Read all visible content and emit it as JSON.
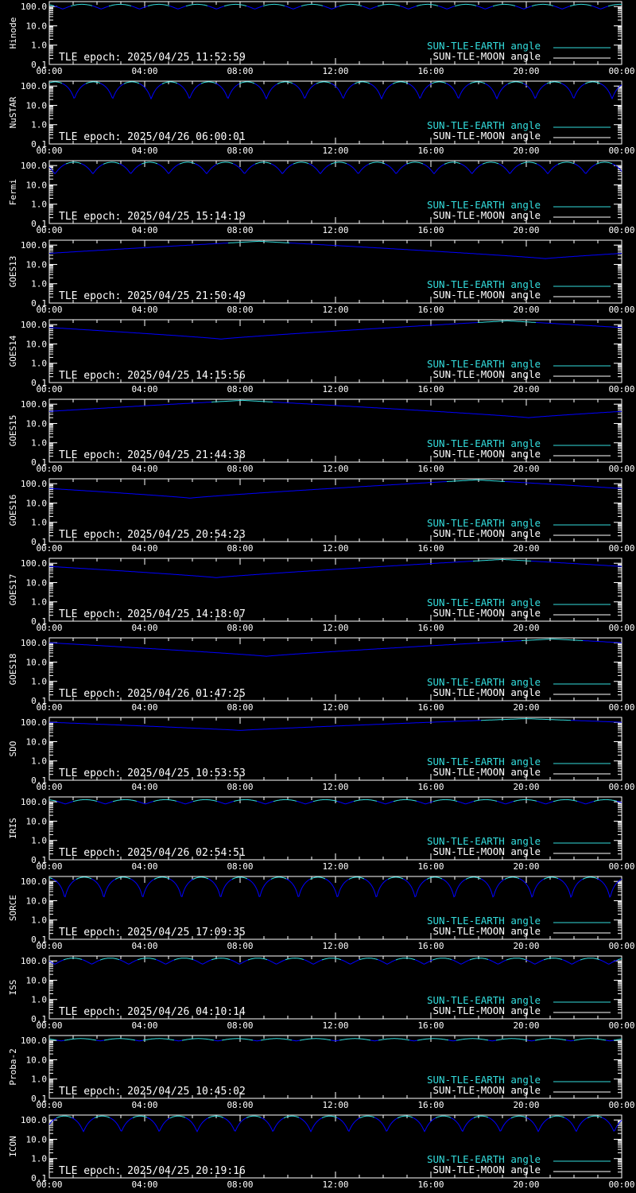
{
  "colors": {
    "background": "#000000",
    "axis": "#ffffff",
    "sun_tle_earth": "#33dddd",
    "sun_tle_moon": "#ffffff",
    "eclipse_curve": "#0000ff"
  },
  "legend": {
    "earth_label": "SUN-TLE-EARTH angle",
    "moon_label": "SUN-TLE-MOON angle"
  },
  "chart_data": [
    {
      "type": "line",
      "ylabel": "Hinode",
      "epoch_text": "TLE epoch: 2025/04/25 11:52:59",
      "yscale": "log",
      "ylim": [
        0.1,
        180
      ],
      "ytick_labels": [
        "0.1",
        "1.0",
        "10.0",
        "100.0"
      ],
      "xlim": [
        0,
        24
      ],
      "xtick_labels": [
        "00:00",
        "04:00",
        "08:00",
        "12:00",
        "16:00",
        "20:00",
        "00:00"
      ],
      "pattern": {
        "kind": "periodic",
        "periods_per_day": 14.9,
        "phase": 0.15,
        "max": 130,
        "min": 75
      },
      "grid": false,
      "legend_position": "bottom-right"
    },
    {
      "type": "line",
      "ylabel": "NuSTAR",
      "epoch_text": "TLE epoch: 2025/04/26 06:00:01",
      "yscale": "log",
      "ylim": [
        0.1,
        180
      ],
      "ytick_labels": [
        "0.1",
        "1.0",
        "10.0",
        "100.0"
      ],
      "xlim": [
        0,
        24
      ],
      "xtick_labels": [
        "00:00",
        "04:00",
        "08:00",
        "12:00",
        "16:00",
        "20:00",
        "00:00"
      ],
      "pattern": {
        "kind": "periodic",
        "periods_per_day": 14.9,
        "phase": 0.85,
        "max": 165,
        "min": 22
      },
      "grid": false,
      "legend_position": "bottom-right"
    },
    {
      "type": "line",
      "ylabel": "Fermi",
      "epoch_text": "TLE epoch: 2025/04/25 15:14:19",
      "yscale": "log",
      "ylim": [
        0.1,
        180
      ],
      "ytick_labels": [
        "0.1",
        "1.0",
        "10.0",
        "100.0"
      ],
      "xlim": [
        0,
        24
      ],
      "xtick_labels": [
        "00:00",
        "04:00",
        "08:00",
        "12:00",
        "16:00",
        "20:00",
        "00:00"
      ],
      "pattern": {
        "kind": "periodic",
        "periods_per_day": 15.1,
        "phase": 0.35,
        "max": 150,
        "min": 38
      },
      "grid": false,
      "legend_position": "bottom-right"
    },
    {
      "type": "line",
      "ylabel": "GOES13",
      "epoch_text": "TLE epoch: 2025/04/25 21:50:49",
      "yscale": "log",
      "ylim": [
        0.1,
        180
      ],
      "ytick_labels": [
        "0.1",
        "1.0",
        "10.0",
        "100.0"
      ],
      "xlim": [
        0,
        24
      ],
      "xtick_labels": [
        "00:00",
        "04:00",
        "08:00",
        "12:00",
        "16:00",
        "20:00",
        "00:00"
      ],
      "pattern": {
        "kind": "daily",
        "min_hour": 20.8,
        "max": 158,
        "min": 20
      },
      "grid": false,
      "legend_position": "bottom-right"
    },
    {
      "type": "line",
      "ylabel": "GOES14",
      "epoch_text": "TLE epoch: 2025/04/25 14:15:56",
      "yscale": "log",
      "ylim": [
        0.1,
        180
      ],
      "ytick_labels": [
        "0.1",
        "1.0",
        "10.0",
        "100.0"
      ],
      "xlim": [
        0,
        24
      ],
      "xtick_labels": [
        "00:00",
        "04:00",
        "08:00",
        "12:00",
        "16:00",
        "20:00",
        "00:00"
      ],
      "pattern": {
        "kind": "daily",
        "min_hour": 7.2,
        "max": 158,
        "min": 18
      },
      "grid": false,
      "legend_position": "bottom-right"
    },
    {
      "type": "line",
      "ylabel": "GOES15",
      "epoch_text": "TLE epoch: 2025/04/25 21:44:38",
      "yscale": "log",
      "ylim": [
        0.1,
        180
      ],
      "ytick_labels": [
        "0.1",
        "1.0",
        "10.0",
        "100.0"
      ],
      "xlim": [
        0,
        24
      ],
      "xtick_labels": [
        "00:00",
        "04:00",
        "08:00",
        "12:00",
        "16:00",
        "20:00",
        "00:00"
      ],
      "pattern": {
        "kind": "daily",
        "min_hour": 20.1,
        "max": 158,
        "min": 20
      },
      "grid": false,
      "legend_position": "bottom-right"
    },
    {
      "type": "line",
      "ylabel": "GOES16",
      "epoch_text": "TLE epoch: 2025/04/25 20:54:23",
      "yscale": "log",
      "ylim": [
        0.1,
        180
      ],
      "ytick_labels": [
        "0.1",
        "1.0",
        "10.0",
        "100.0"
      ],
      "xlim": [
        0,
        24
      ],
      "xtick_labels": [
        "00:00",
        "04:00",
        "08:00",
        "12:00",
        "16:00",
        "20:00",
        "00:00"
      ],
      "pattern": {
        "kind": "daily",
        "min_hour": 5.9,
        "max": 158,
        "min": 18
      },
      "grid": false,
      "legend_position": "bottom-right"
    },
    {
      "type": "line",
      "ylabel": "GOES17",
      "epoch_text": "TLE epoch: 2025/04/25 14:18:07",
      "yscale": "log",
      "ylim": [
        0.1,
        180
      ],
      "ytick_labels": [
        "0.1",
        "1.0",
        "10.0",
        "100.0"
      ],
      "xlim": [
        0,
        24
      ],
      "xtick_labels": [
        "00:00",
        "04:00",
        "08:00",
        "12:00",
        "16:00",
        "20:00",
        "00:00"
      ],
      "pattern": {
        "kind": "daily",
        "min_hour": 7.0,
        "max": 158,
        "min": 18
      },
      "grid": false,
      "legend_position": "bottom-right"
    },
    {
      "type": "line",
      "ylabel": "GOES18",
      "epoch_text": "TLE epoch: 2025/04/26 01:47:25",
      "yscale": "log",
      "ylim": [
        0.1,
        180
      ],
      "ytick_labels": [
        "0.1",
        "1.0",
        "10.0",
        "100.0"
      ],
      "xlim": [
        0,
        24
      ],
      "xtick_labels": [
        "00:00",
        "04:00",
        "08:00",
        "12:00",
        "16:00",
        "20:00",
        "00:00"
      ],
      "pattern": {
        "kind": "daily",
        "min_hour": 9.1,
        "max": 158,
        "min": 20
      },
      "grid": false,
      "legend_position": "bottom-right"
    },
    {
      "type": "line",
      "ylabel": "SDO",
      "epoch_text": "TLE epoch: 2025/04/25 10:53:53",
      "yscale": "log",
      "ylim": [
        0.1,
        180
      ],
      "ytick_labels": [
        "0.1",
        "1.0",
        "10.0",
        "100.0"
      ],
      "xlim": [
        0,
        24
      ],
      "xtick_labels": [
        "00:00",
        "04:00",
        "08:00",
        "12:00",
        "16:00",
        "20:00",
        "00:00"
      ],
      "pattern": {
        "kind": "daily",
        "min_hour": 8.0,
        "max": 155,
        "min": 38
      },
      "grid": false,
      "legend_position": "bottom-right"
    },
    {
      "type": "line",
      "ylabel": "IRIS",
      "epoch_text": "TLE epoch: 2025/04/26 02:54:51",
      "yscale": "log",
      "ylim": [
        0.1,
        180
      ],
      "ytick_labels": [
        "0.1",
        "1.0",
        "10.0",
        "100.0"
      ],
      "xlim": [
        0,
        24
      ],
      "xtick_labels": [
        "00:00",
        "04:00",
        "08:00",
        "12:00",
        "16:00",
        "20:00",
        "00:00"
      ],
      "pattern": {
        "kind": "periodic",
        "periods_per_day": 14.3,
        "phase": 0.1,
        "max": 130,
        "min": 78
      },
      "grid": false,
      "legend_position": "bottom-right"
    },
    {
      "type": "line",
      "ylabel": "SORCE",
      "epoch_text": "TLE epoch: 2025/04/25 17:09:35",
      "yscale": "log",
      "ylim": [
        0.1,
        180
      ],
      "ytick_labels": [
        "0.1",
        "1.0",
        "10.0",
        "100.0"
      ],
      "xlim": [
        0,
        24
      ],
      "xtick_labels": [
        "00:00",
        "04:00",
        "08:00",
        "12:00",
        "16:00",
        "20:00",
        "00:00"
      ],
      "pattern": {
        "kind": "periodic",
        "periods_per_day": 14.7,
        "phase": 0.1,
        "max": 165,
        "min": 14
      },
      "grid": false,
      "legend_position": "bottom-right"
    },
    {
      "type": "line",
      "ylabel": "ISS",
      "epoch_text": "TLE epoch: 2025/04/26 04:10:14",
      "yscale": "log",
      "ylim": [
        0.1,
        180
      ],
      "ytick_labels": [
        "0.1",
        "1.0",
        "10.0",
        "100.0"
      ],
      "xlim": [
        0,
        24
      ],
      "xtick_labels": [
        "00:00",
        "04:00",
        "08:00",
        "12:00",
        "16:00",
        "20:00",
        "00:00"
      ],
      "pattern": {
        "kind": "periodic",
        "periods_per_day": 15.5,
        "phase": 0.35,
        "max": 140,
        "min": 68
      },
      "grid": false,
      "legend_position": "bottom-right"
    },
    {
      "type": "line",
      "ylabel": "Proba-2",
      "epoch_text": "TLE epoch: 2025/04/25 10:45:02",
      "yscale": "log",
      "ylim": [
        0.1,
        180
      ],
      "ytick_labels": [
        "0.1",
        "1.0",
        "10.0",
        "100.0"
      ],
      "xlim": [
        0,
        24
      ],
      "xtick_labels": [
        "00:00",
        "04:00",
        "08:00",
        "12:00",
        "16:00",
        "20:00",
        "00:00"
      ],
      "pattern": {
        "kind": "periodic",
        "periods_per_day": 14.6,
        "phase": 0.2,
        "max": 125,
        "min": 95
      },
      "grid": false,
      "legend_position": "bottom-right"
    },
    {
      "type": "line",
      "ylabel": "ICON",
      "epoch_text": "TLE epoch: 2025/04/25 20:19:16",
      "yscale": "log",
      "ylim": [
        0.1,
        180
      ],
      "ytick_labels": [
        "0.1",
        "1.0",
        "10.0",
        "100.0"
      ],
      "xlim": [
        0,
        24
      ],
      "xtick_labels": [
        "00:00",
        "04:00",
        "08:00",
        "12:00",
        "16:00",
        "20:00",
        "00:00"
      ],
      "pattern": {
        "kind": "periodic",
        "periods_per_day": 15.1,
        "phase": 0.6,
        "max": 160,
        "min": 25
      },
      "grid": false,
      "legend_position": "bottom-right"
    }
  ]
}
